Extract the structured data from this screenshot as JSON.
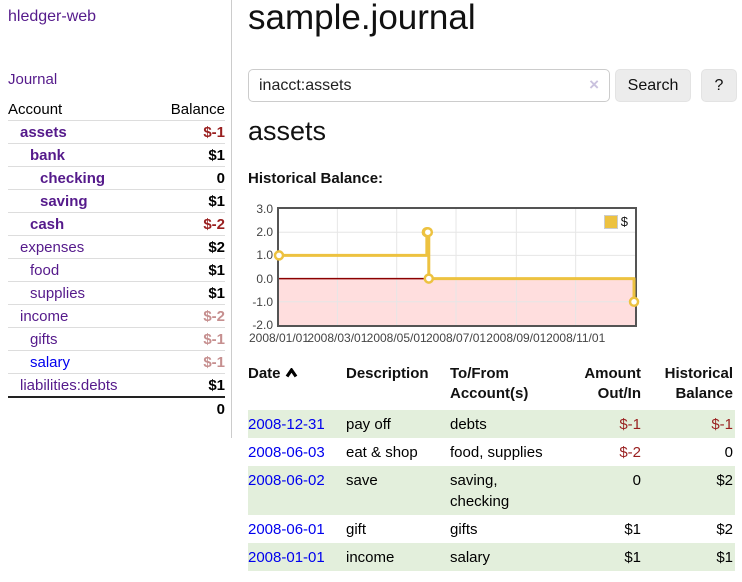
{
  "brand": "hledger-web",
  "sidebar": {
    "journal_link": "Journal",
    "header": {
      "account": "Account",
      "balance": "Balance"
    },
    "accounts": [
      {
        "name": "assets",
        "balance": "$-1"
      },
      {
        "name": "bank",
        "balance": "$1"
      },
      {
        "name": "checking",
        "balance": "0"
      },
      {
        "name": "saving",
        "balance": "$1"
      },
      {
        "name": "cash",
        "balance": "$-2"
      },
      {
        "name": "expenses",
        "balance": "$2"
      },
      {
        "name": "food",
        "balance": "$1"
      },
      {
        "name": "supplies",
        "balance": "$1"
      },
      {
        "name": "income",
        "balance": "$-2"
      },
      {
        "name": "gifts",
        "balance": "$-1"
      },
      {
        "name": "salary",
        "balance": "$-1"
      },
      {
        "name": "liabilities:debts",
        "balance": "$1"
      }
    ],
    "total": "0"
  },
  "page": {
    "title": "sample.journal"
  },
  "search": {
    "query": "inacct:assets",
    "clear": "×",
    "search_button": "Search",
    "help_button": "?"
  },
  "account": {
    "heading": "assets",
    "section_label": "Historical Balance:"
  },
  "colors": {
    "visited_link": "#551a8b",
    "link": "#0000ee",
    "negative": "#991f1f",
    "negative_faded": "#c68f8f",
    "row_stripe": "#e3efdc",
    "series": "#edc240"
  },
  "chart_data": {
    "type": "line",
    "step": true,
    "series": [
      {
        "name": "$",
        "color": "#edc240",
        "points": [
          [
            "2008-01-01",
            1
          ],
          [
            "2008-06-01",
            2
          ],
          [
            "2008-06-02",
            2
          ],
          [
            "2008-06-03",
            0
          ],
          [
            "2008-12-31",
            -1
          ]
        ]
      }
    ],
    "xlim": [
      "2008-01-01",
      "2009-01-01"
    ],
    "ylim": [
      -2,
      3
    ],
    "yticks": [
      "3.0",
      "2.0",
      "1.0",
      "0.0",
      "-1.0",
      "-2.0"
    ],
    "xticks": [
      {
        "label": "2008/01/01",
        "date": "2008-01-01"
      },
      {
        "label": "2008/03/01",
        "date": "2008-03-01"
      },
      {
        "label": "2008/05/01",
        "date": "2008-05-01"
      },
      {
        "label": "2008/07/01",
        "date": "2008-07-01"
      },
      {
        "label": "2008/09/01",
        "date": "2008-09-01"
      },
      {
        "label": "2008/11/01",
        "date": "2008-11-01"
      }
    ],
    "grid": true,
    "legend_position": "top-right",
    "zero_line_color": "#8b0000",
    "negative_region_color": "rgba(255,0,0,0.13)"
  },
  "register": {
    "columns": [
      "Date",
      "Description",
      "To/From Account(s)",
      "Amount Out/In",
      "Historical Balance"
    ],
    "rows": [
      {
        "date": "2008-12-31",
        "description": "pay off",
        "accounts": "debts",
        "amount": "$-1",
        "balance": "$-1"
      },
      {
        "date": "2008-06-03",
        "description": "eat & shop",
        "accounts": "food, supplies",
        "amount": "$-2",
        "balance": "0"
      },
      {
        "date": "2008-06-02",
        "description": "save",
        "accounts": "saving, checking",
        "amount": "0",
        "balance": "$2"
      },
      {
        "date": "2008-06-01",
        "description": "gift",
        "accounts": "gifts",
        "amount": "$1",
        "balance": "$2"
      },
      {
        "date": "2008-01-01",
        "description": "income",
        "accounts": "salary",
        "amount": "$1",
        "balance": "$1"
      }
    ]
  }
}
